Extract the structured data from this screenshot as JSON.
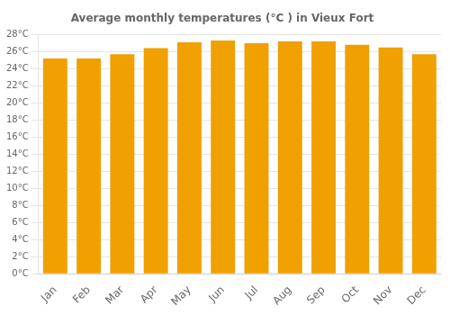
{
  "chart_data": {
    "type": "bar",
    "title": "Average monthly temperatures (°C ) in Vieux Fort",
    "categories": [
      "Jan",
      "Feb",
      "Mar",
      "Apr",
      "May",
      "Jun",
      "Jul",
      "Aug",
      "Sep",
      "Oct",
      "Nov",
      "Dec"
    ],
    "values": [
      25.2,
      25.2,
      25.7,
      26.4,
      27.1,
      27.3,
      27.0,
      27.2,
      27.2,
      26.8,
      26.5,
      25.7
    ],
    "color": "#F0A000",
    "ylim": [
      0,
      28
    ],
    "yticks": [
      {
        "value": 0,
        "label": "0°C"
      },
      {
        "value": 2,
        "label": "2°C"
      },
      {
        "value": 4,
        "label": "4°C"
      },
      {
        "value": 6,
        "label": "6°C"
      },
      {
        "value": 8,
        "label": "8°C"
      },
      {
        "value": 10,
        "label": "10°C"
      },
      {
        "value": 12,
        "label": "12°C"
      },
      {
        "value": 14,
        "label": "14°C"
      },
      {
        "value": 16,
        "label": "16°C"
      },
      {
        "value": 18,
        "label": "18°C"
      },
      {
        "value": 20,
        "label": "20°C"
      },
      {
        "value": 22,
        "label": "22°C"
      },
      {
        "value": 24,
        "label": "24°C"
      },
      {
        "value": 26,
        "label": "26°C"
      },
      {
        "value": 28,
        "label": "28°C"
      }
    ],
    "grid": true
  }
}
